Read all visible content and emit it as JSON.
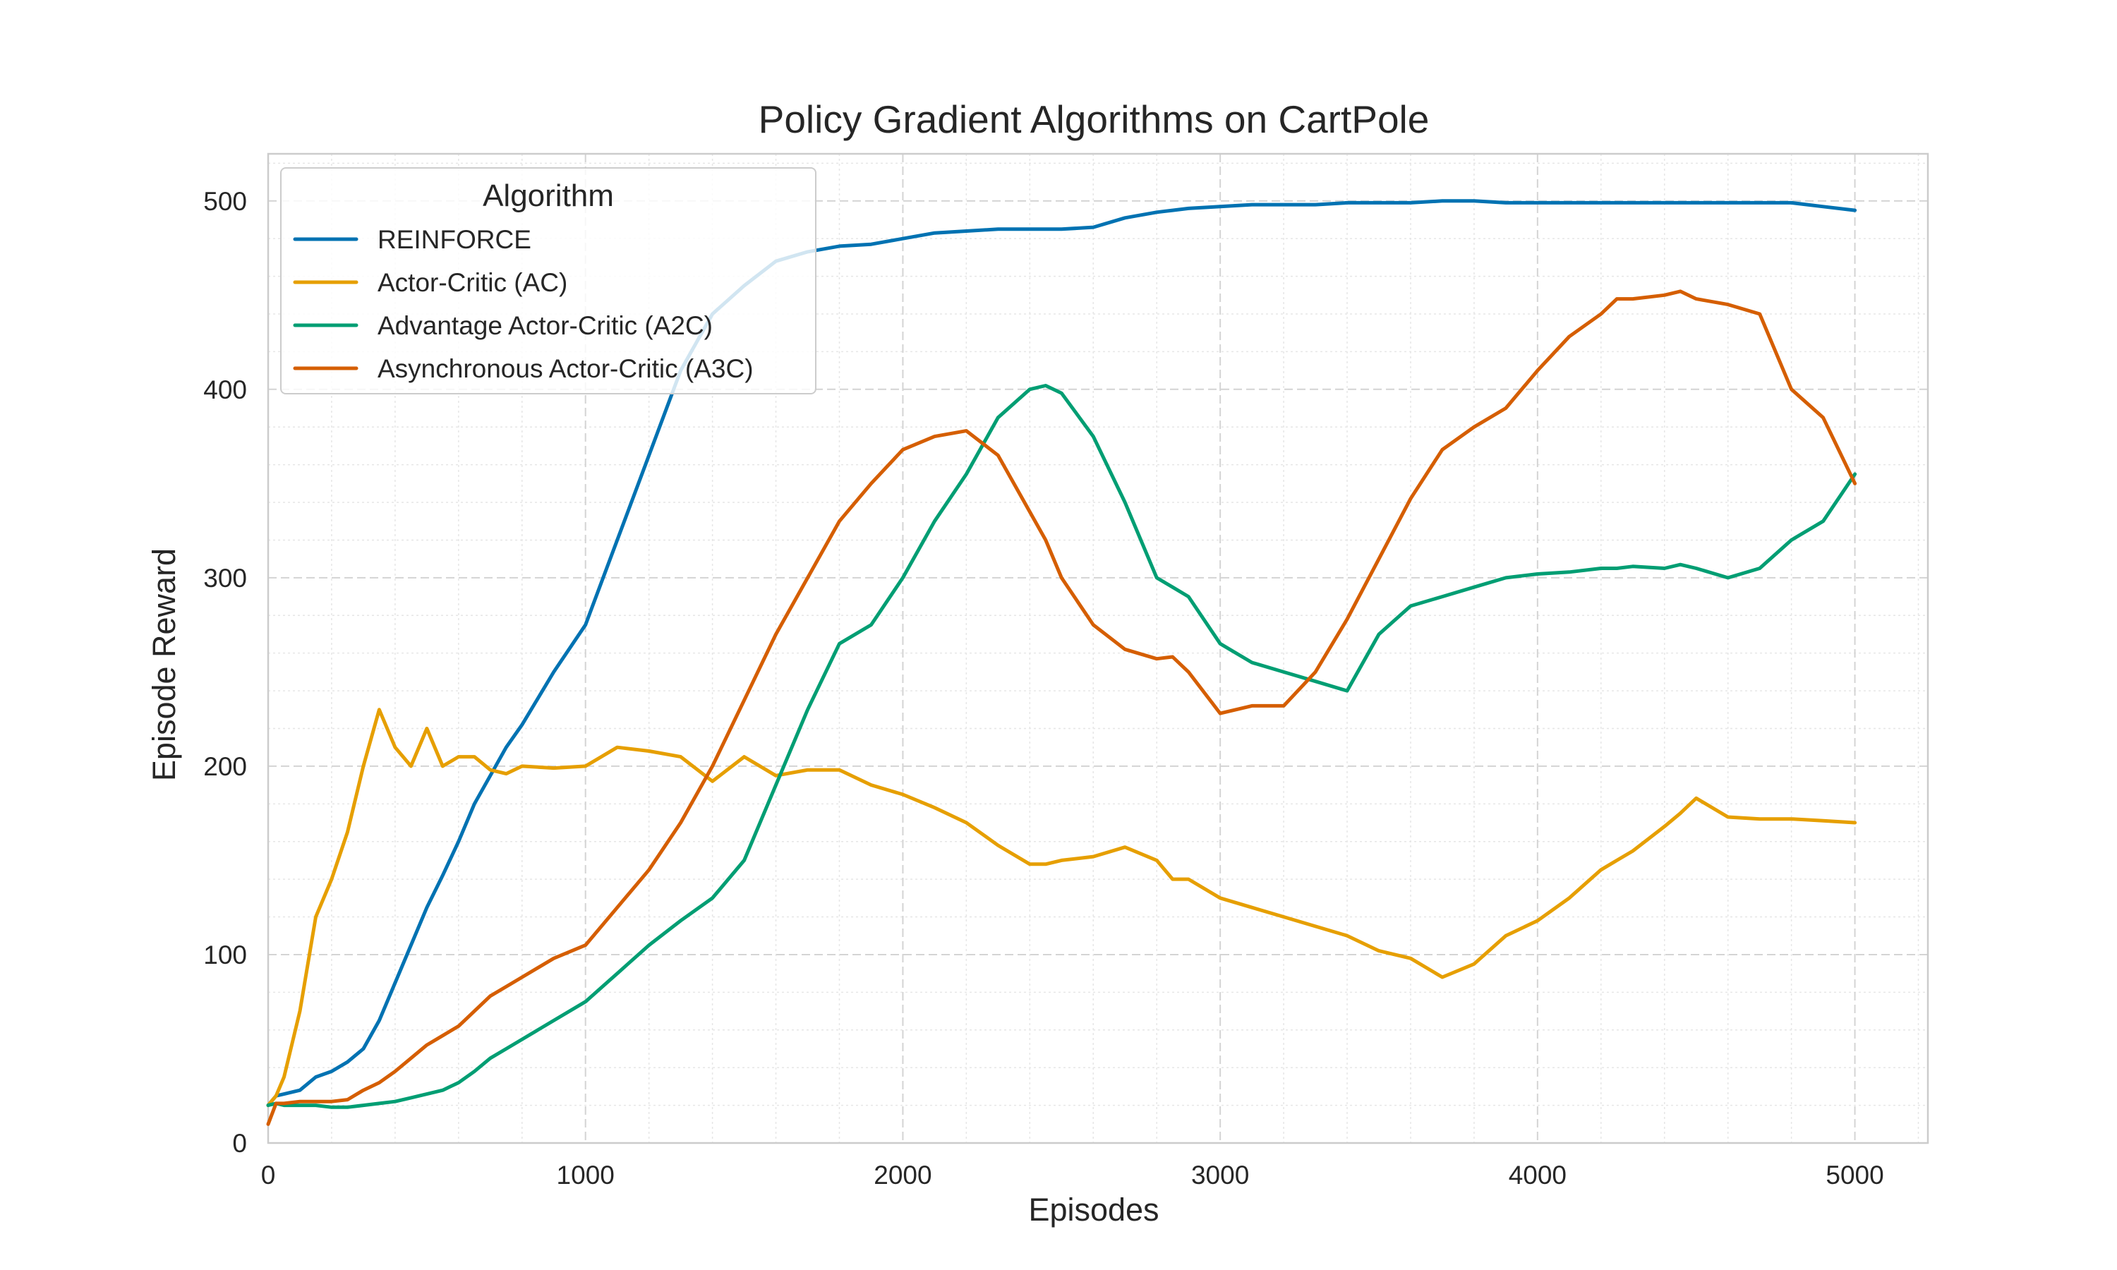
{
  "chart_data": {
    "type": "line",
    "title": "Policy Gradient Algorithms on CartPole",
    "xlabel": "Episodes",
    "ylabel": "Episode Reward",
    "xlim": [
      0,
      5230
    ],
    "ylim": [
      0,
      525
    ],
    "xticks": [
      0,
      1000,
      2000,
      3000,
      4000,
      5000
    ],
    "yticks": [
      0,
      100,
      200,
      300,
      400,
      500
    ],
    "grid": true,
    "legend": {
      "title": "Algorithm",
      "position": "top-left"
    },
    "x": [
      0,
      25,
      50,
      100,
      150,
      200,
      250,
      300,
      350,
      400,
      450,
      500,
      550,
      600,
      650,
      700,
      750,
      800,
      900,
      1000,
      1100,
      1200,
      1300,
      1400,
      1500,
      1600,
      1700,
      1800,
      1900,
      2000,
      2100,
      2200,
      2300,
      2400,
      2450,
      2500,
      2600,
      2700,
      2800,
      2850,
      2900,
      3000,
      3100,
      3200,
      3300,
      3400,
      3500,
      3600,
      3700,
      3800,
      3900,
      4000,
      4100,
      4200,
      4250,
      4300,
      4400,
      4450,
      4500,
      4600,
      4700,
      4800,
      4900,
      5000
    ],
    "series": [
      {
        "name": "REINFORCE",
        "color": "#0072b2",
        "values": [
          20,
          25,
          26,
          28,
          35,
          38,
          43,
          50,
          65,
          85,
          105,
          125,
          142,
          160,
          180,
          195,
          210,
          222,
          250,
          275,
          320,
          365,
          410,
          440,
          455,
          468,
          473,
          476,
          477,
          480,
          483,
          484,
          485,
          485,
          485,
          485,
          486,
          491,
          494,
          495,
          496,
          497,
          498,
          498,
          498,
          499,
          499,
          499,
          500,
          500,
          499,
          499,
          499,
          499,
          499,
          499,
          499,
          499,
          499,
          499,
          499,
          499,
          497,
          495
        ]
      },
      {
        "name": "Actor-Critic (AC)",
        "color": "#e69f00",
        "values": [
          20,
          25,
          35,
          70,
          120,
          140,
          165,
          200,
          230,
          210,
          200,
          220,
          200,
          205,
          205,
          198,
          196,
          200,
          199,
          200,
          210,
          208,
          205,
          192,
          205,
          195,
          198,
          198,
          190,
          185,
          178,
          170,
          158,
          148,
          148,
          150,
          152,
          157,
          150,
          140,
          140,
          130,
          125,
          120,
          115,
          110,
          102,
          98,
          88,
          95,
          110,
          118,
          130,
          145,
          150,
          155,
          168,
          175,
          183,
          173,
          172,
          172,
          171,
          170
        ]
      },
      {
        "name": "Advantage Actor-Critic (A2C)",
        "color": "#009e73",
        "values": [
          20,
          21,
          20,
          20,
          20,
          19,
          19,
          20,
          21,
          22,
          24,
          26,
          28,
          32,
          38,
          45,
          50,
          55,
          65,
          75,
          90,
          105,
          118,
          130,
          150,
          190,
          230,
          265,
          275,
          300,
          330,
          355,
          385,
          400,
          402,
          398,
          375,
          340,
          300,
          295,
          290,
          265,
          255,
          250,
          245,
          240,
          270,
          285,
          290,
          295,
          300,
          302,
          303,
          305,
          305,
          306,
          305,
          307,
          305,
          300,
          305,
          320,
          330,
          355
        ]
      },
      {
        "name": "Asynchronous Actor-Critic (A3C)",
        "color": "#d55e00",
        "values": [
          10,
          21,
          21,
          22,
          22,
          22,
          23,
          28,
          32,
          38,
          45,
          52,
          57,
          62,
          70,
          78,
          83,
          88,
          98,
          105,
          125,
          145,
          170,
          200,
          235,
          270,
          300,
          330,
          350,
          368,
          375,
          378,
          365,
          335,
          320,
          300,
          275,
          262,
          257,
          258,
          250,
          228,
          232,
          232,
          250,
          278,
          310,
          342,
          368,
          380,
          390,
          410,
          428,
          440,
          448,
          448,
          450,
          452,
          448,
          445,
          440,
          400,
          385,
          350
        ]
      }
    ]
  }
}
